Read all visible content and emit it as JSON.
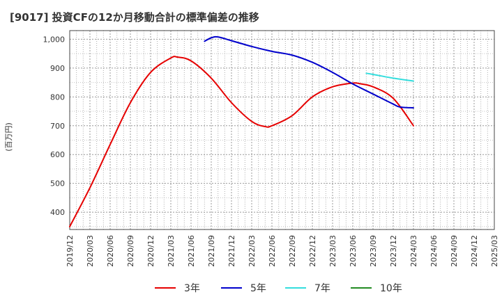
{
  "title": "[9017]  投資CFの12か月移動合計の標準偏差の推移",
  "colors": {
    "3年": "#e60000",
    "5年": "#0000cc",
    "7年": "#33dddd",
    "10年": "#228b22",
    "grid": "#999999",
    "axis": "#444444"
  },
  "chart_data": {
    "type": "line",
    "title": "[9017]  投資CFの12か月移動合計の標準偏差の推移",
    "xlabel": "",
    "ylabel": "(百万円)",
    "x_ticks": [
      "2019/12",
      "2020/03",
      "2020/06",
      "2020/09",
      "2020/12",
      "2021/03",
      "2021/06",
      "2021/09",
      "2021/12",
      "2022/03",
      "2022/06",
      "2022/09",
      "2022/12",
      "2023/03",
      "2023/06",
      "2023/09",
      "2023/12",
      "2024/03",
      "2024/06",
      "2024/09",
      "2024/12",
      "2025/03"
    ],
    "y_ticks": [
      400,
      500,
      600,
      700,
      800,
      900,
      1000
    ],
    "y_tick_labels": [
      "400",
      "500",
      "600",
      "700",
      "800",
      "900",
      "1,000"
    ],
    "ylim": [
      340,
      1030
    ],
    "grid": true,
    "legend_position": "bottom",
    "series": [
      {
        "name": "3年",
        "color": "#e60000",
        "points": [
          [
            "2019/12",
            350
          ],
          [
            "2020/03",
            485
          ],
          [
            "2020/06",
            635
          ],
          [
            "2020/09",
            780
          ],
          [
            "2020/12",
            885
          ],
          [
            "2021/03",
            935
          ],
          [
            "2021/04",
            938
          ],
          [
            "2021/06",
            925
          ],
          [
            "2021/09",
            865
          ],
          [
            "2021/12",
            780
          ],
          [
            "2022/03",
            715
          ],
          [
            "2022/05",
            697
          ],
          [
            "2022/06",
            700
          ],
          [
            "2022/09",
            735
          ],
          [
            "2022/12",
            800
          ],
          [
            "2023/03",
            835
          ],
          [
            "2023/06",
            848
          ],
          [
            "2023/07",
            846
          ],
          [
            "2023/09",
            835
          ],
          [
            "2023/12",
            795
          ],
          [
            "2024/03",
            700
          ]
        ]
      },
      {
        "name": "5年",
        "color": "#0000cc",
        "points": [
          [
            "2021/08",
            993
          ],
          [
            "2021/09",
            1005
          ],
          [
            "2021/10",
            1008
          ],
          [
            "2021/12",
            995
          ],
          [
            "2022/03",
            975
          ],
          [
            "2022/06",
            958
          ],
          [
            "2022/09",
            945
          ],
          [
            "2022/12",
            920
          ],
          [
            "2023/03",
            885
          ],
          [
            "2023/06",
            845
          ],
          [
            "2023/09",
            810
          ],
          [
            "2023/12",
            775
          ],
          [
            "2024/01",
            765
          ],
          [
            "2024/03",
            762
          ]
        ]
      },
      {
        "name": "7年",
        "color": "#33dddd",
        "points": [
          [
            "2023/08",
            882
          ],
          [
            "2023/09",
            878
          ],
          [
            "2023/12",
            865
          ],
          [
            "2024/03",
            855
          ]
        ]
      },
      {
        "name": "10年",
        "color": "#228b22",
        "points": []
      }
    ]
  }
}
